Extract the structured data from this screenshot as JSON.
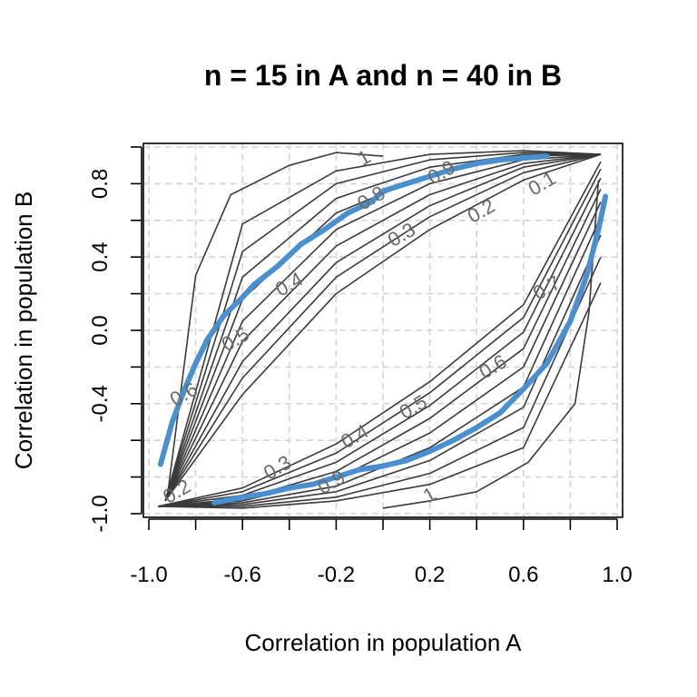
{
  "chart_data": {
    "type": "contour",
    "title": "n = 15 in A and n = 40 in B",
    "xlabel": "Correlation in population A",
    "ylabel": "Correlation in population B",
    "xlim": [
      -1.0,
      1.0
    ],
    "ylim": [
      -1.0,
      1.0
    ],
    "xticks": [
      -1.0,
      -0.8,
      -0.6,
      -0.4,
      -0.2,
      0.0,
      0.2,
      0.4,
      0.6,
      0.8,
      1.0
    ],
    "xtick_labels": [
      "-1.0",
      "-0.6",
      "-0.2",
      "0.2",
      "0.6",
      "1.0"
    ],
    "yticks": [
      -1.0,
      -0.8,
      -0.6,
      -0.4,
      -0.2,
      0.0,
      0.2,
      0.4,
      0.6,
      0.8,
      1.0
    ],
    "ytick_labels": [
      "-1.0",
      "-0.4",
      "0.0",
      "0.4",
      "0.8"
    ],
    "grid": true,
    "contour_levels": [
      {
        "level": "0.1",
        "upper": [
          [
            -0.93,
            -0.93
          ],
          [
            -0.6,
            -0.35
          ],
          [
            -0.2,
            0.2
          ],
          [
            0.2,
            0.55
          ],
          [
            0.6,
            0.82
          ],
          [
            0.93,
            0.96
          ]
        ],
        "lower": [
          [
            -0.96,
            -0.96
          ],
          [
            -0.6,
            -0.86
          ],
          [
            -0.2,
            -0.62
          ],
          [
            0.2,
            -0.28
          ],
          [
            0.6,
            0.14
          ],
          [
            0.93,
            0.92
          ]
        ]
      },
      {
        "level": "0.2",
        "upper": [
          [
            -0.93,
            -0.93
          ],
          [
            -0.6,
            -0.26
          ],
          [
            -0.2,
            0.29
          ],
          [
            0.2,
            0.62
          ],
          [
            0.6,
            0.86
          ],
          [
            0.93,
            0.96
          ]
        ],
        "lower": [
          [
            -0.96,
            -0.96
          ],
          [
            -0.6,
            -0.88
          ],
          [
            -0.2,
            -0.67
          ],
          [
            0.2,
            -0.34
          ],
          [
            0.6,
            0.07
          ],
          [
            0.93,
            0.88
          ]
        ]
      },
      {
        "level": "0.3",
        "upper": [
          [
            -0.93,
            -0.93
          ],
          [
            -0.6,
            -0.17
          ],
          [
            -0.2,
            0.37
          ],
          [
            0.2,
            0.68
          ],
          [
            0.6,
            0.89
          ],
          [
            0.93,
            0.96
          ]
        ],
        "lower": [
          [
            -0.96,
            -0.96
          ],
          [
            -0.6,
            -0.9
          ],
          [
            -0.2,
            -0.72
          ],
          [
            0.2,
            -0.41
          ],
          [
            0.6,
            -0.01
          ],
          [
            0.93,
            0.83
          ]
        ]
      },
      {
        "level": "0.4",
        "upper": [
          [
            -0.93,
            -0.93
          ],
          [
            -0.6,
            -0.06
          ],
          [
            -0.2,
            0.46
          ],
          [
            0.2,
            0.74
          ],
          [
            0.6,
            0.91
          ],
          [
            0.93,
            0.96
          ]
        ],
        "lower": [
          [
            -0.96,
            -0.96
          ],
          [
            -0.6,
            -0.92
          ],
          [
            -0.2,
            -0.77
          ],
          [
            0.2,
            -0.48
          ],
          [
            0.6,
            -0.1
          ],
          [
            0.93,
            0.77
          ]
        ]
      },
      {
        "level": "0.5",
        "upper": [
          [
            -0.93,
            -0.93
          ],
          [
            -0.6,
            0.05
          ],
          [
            -0.2,
            0.55
          ],
          [
            0.2,
            0.8
          ],
          [
            0.6,
            0.93
          ],
          [
            0.93,
            0.96
          ]
        ],
        "lower": [
          [
            -0.96,
            -0.96
          ],
          [
            -0.6,
            -0.93
          ],
          [
            -0.2,
            -0.81
          ],
          [
            0.2,
            -0.56
          ],
          [
            0.6,
            -0.2
          ],
          [
            0.93,
            0.7
          ]
        ]
      },
      {
        "level": "0.6",
        "upper": [
          [
            -0.93,
            -0.93
          ],
          [
            -0.6,
            0.17
          ],
          [
            -0.2,
            0.64
          ],
          [
            0.2,
            0.85
          ],
          [
            0.6,
            0.95
          ],
          [
            0.93,
            0.96
          ]
        ],
        "lower": [
          [
            -0.96,
            -0.96
          ],
          [
            -0.6,
            -0.94
          ],
          [
            -0.2,
            -0.85
          ],
          [
            0.2,
            -0.64
          ],
          [
            0.6,
            -0.31
          ],
          [
            0.93,
            0.62
          ]
        ]
      },
      {
        "level": "0.7",
        "upper": [
          [
            -0.93,
            -0.93
          ],
          [
            -0.6,
            0.29
          ],
          [
            -0.2,
            0.72
          ],
          [
            0.2,
            0.89
          ],
          [
            0.6,
            0.96
          ],
          [
            0.93,
            0.96
          ]
        ],
        "lower": [
          [
            -0.96,
            -0.96
          ],
          [
            -0.6,
            -0.95
          ],
          [
            -0.2,
            -0.88
          ],
          [
            0.2,
            -0.71
          ],
          [
            0.6,
            -0.42
          ],
          [
            0.93,
            0.52
          ]
        ]
      },
      {
        "level": "0.8",
        "upper": [
          [
            -0.93,
            -0.93
          ],
          [
            -0.6,
            0.43
          ],
          [
            -0.2,
            0.8
          ],
          [
            0.2,
            0.93
          ],
          [
            0.6,
            0.97
          ],
          [
            0.93,
            0.96
          ]
        ],
        "lower": [
          [
            -0.96,
            -0.96
          ],
          [
            -0.6,
            -0.96
          ],
          [
            -0.2,
            -0.91
          ],
          [
            0.2,
            -0.78
          ],
          [
            0.6,
            -0.53
          ],
          [
            0.93,
            0.4
          ]
        ]
      },
      {
        "level": "0.9",
        "upper": [
          [
            -0.93,
            -0.93
          ],
          [
            -0.6,
            0.58
          ],
          [
            -0.2,
            0.87
          ],
          [
            0.2,
            0.96
          ],
          [
            0.6,
            0.98
          ],
          [
            0.93,
            0.96
          ]
        ],
        "lower": [
          [
            -0.96,
            -0.96
          ],
          [
            -0.6,
            -0.97
          ],
          [
            -0.2,
            -0.93
          ],
          [
            0.2,
            -0.84
          ],
          [
            0.6,
            -0.64
          ],
          [
            0.93,
            0.26
          ]
        ]
      },
      {
        "level": "1",
        "upper": [
          [
            -0.92,
            -0.9
          ],
          [
            -0.85,
            -0.2
          ],
          [
            -0.8,
            0.3
          ],
          [
            -0.65,
            0.74
          ],
          [
            -0.4,
            0.9
          ],
          [
            -0.2,
            0.97
          ],
          [
            0.0,
            0.95
          ]
        ],
        "lower": [
          [
            0.0,
            -0.97
          ],
          [
            0.2,
            -0.93
          ],
          [
            0.4,
            -0.88
          ],
          [
            0.62,
            -0.72
          ],
          [
            0.82,
            -0.4
          ],
          [
            0.88,
            0.1
          ],
          [
            0.92,
            0.82
          ]
        ]
      }
    ],
    "contour_labels": [
      {
        "text": "1",
        "x": -0.08,
        "y": 0.94
      },
      {
        "text": "0.9",
        "x": 0.25,
        "y": 0.86
      },
      {
        "text": "0.8",
        "x": -0.05,
        "y": 0.72
      },
      {
        "text": "0.3",
        "x": 0.08,
        "y": 0.52
      },
      {
        "text": "0.2",
        "x": 0.42,
        "y": 0.65
      },
      {
        "text": "0.1",
        "x": 0.68,
        "y": 0.8
      },
      {
        "text": "0.4",
        "x": -0.4,
        "y": 0.25
      },
      {
        "text": "0.5",
        "x": -0.63,
        "y": -0.05
      },
      {
        "text": "0.6",
        "x": -0.85,
        "y": -0.35
      },
      {
        "text": "0.7",
        "x": 0.7,
        "y": 0.23
      },
      {
        "text": "0.6",
        "x": 0.47,
        "y": -0.2
      },
      {
        "text": "0.5",
        "x": 0.13,
        "y": -0.42
      },
      {
        "text": "0.4",
        "x": -0.12,
        "y": -0.58
      },
      {
        "text": "0.3",
        "x": -0.45,
        "y": -0.75
      },
      {
        "text": "0.9",
        "x": -0.22,
        "y": -0.83
      },
      {
        "text": "1",
        "x": 0.2,
        "y": -0.9
      },
      {
        "text": "0.2",
        "x": -0.88,
        "y": -0.88
      }
    ],
    "highlight_color": "#4a8fcf",
    "highlight_upper": [
      [
        -0.95,
        -0.73
      ],
      [
        -0.9,
        -0.5
      ],
      [
        -0.85,
        -0.33
      ],
      [
        -0.8,
        -0.18
      ],
      [
        -0.75,
        -0.05
      ],
      [
        -0.68,
        0.08
      ],
      [
        -0.6,
        0.18
      ],
      [
        -0.55,
        0.25
      ],
      [
        -0.45,
        0.35
      ],
      [
        -0.35,
        0.47
      ],
      [
        -0.25,
        0.55
      ],
      [
        -0.15,
        0.64
      ],
      [
        -0.05,
        0.7
      ],
      [
        0.0,
        0.76
      ],
      [
        0.1,
        0.8
      ],
      [
        0.2,
        0.84
      ],
      [
        0.3,
        0.88
      ],
      [
        0.4,
        0.91
      ],
      [
        0.5,
        0.93
      ],
      [
        0.6,
        0.94
      ],
      [
        0.7,
        0.95
      ]
    ],
    "highlight_lower": [
      [
        -0.72,
        -0.94
      ],
      [
        -0.6,
        -0.91
      ],
      [
        -0.5,
        -0.89
      ],
      [
        -0.4,
        -0.86
      ],
      [
        -0.3,
        -0.84
      ],
      [
        -0.2,
        -0.8
      ],
      [
        -0.1,
        -0.76
      ],
      [
        0.0,
        -0.74
      ],
      [
        0.1,
        -0.71
      ],
      [
        0.2,
        -0.66
      ],
      [
        0.3,
        -0.6
      ],
      [
        0.4,
        -0.53
      ],
      [
        0.5,
        -0.45
      ],
      [
        0.6,
        -0.32
      ],
      [
        0.7,
        -0.18
      ],
      [
        0.8,
        0.05
      ],
      [
        0.87,
        0.3
      ],
      [
        0.92,
        0.55
      ],
      [
        0.95,
        0.73
      ]
    ]
  }
}
